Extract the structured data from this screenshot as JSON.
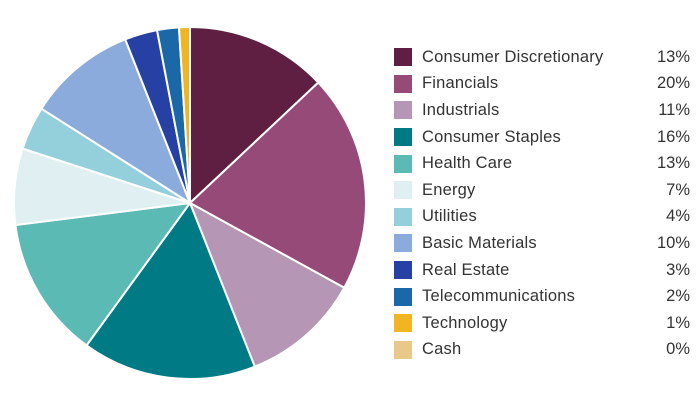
{
  "chart_data": {
    "type": "pie",
    "title": "",
    "start_angle_deg": 0,
    "slices": [
      {
        "label": "Consumer Discretionary",
        "value": 13,
        "display": "13%",
        "color": "#5e1f42"
      },
      {
        "label": "Financials",
        "value": 20,
        "display": "20%",
        "color": "#964a78"
      },
      {
        "label": "Industrials",
        "value": 11,
        "display": "11%",
        "color": "#b596b4"
      },
      {
        "label": "Consumer Staples",
        "value": 16,
        "display": "16%",
        "color": "#007a84"
      },
      {
        "label": "Health Care",
        "value": 13,
        "display": "13%",
        "color": "#5cbab5"
      },
      {
        "label": "Energy",
        "value": 7,
        "display": "7%",
        "color": "#e0eff1"
      },
      {
        "label": "Utilities",
        "value": 4,
        "display": "4%",
        "color": "#94d0dc"
      },
      {
        "label": "Basic Materials",
        "value": 10,
        "display": "10%",
        "color": "#8aabdb"
      },
      {
        "label": "Real Estate",
        "value": 3,
        "display": "3%",
        "color": "#2641a3"
      },
      {
        "label": "Telecommunications",
        "value": 2,
        "display": "2%",
        "color": "#1b68a8"
      },
      {
        "label": "Technology",
        "value": 1,
        "display": "1%",
        "color": "#f0b521"
      },
      {
        "label": "Cash",
        "value": 0,
        "display": "0%",
        "color": "#e8c98a"
      }
    ],
    "legend_position": "right"
  }
}
